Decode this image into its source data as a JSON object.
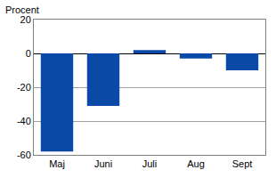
{
  "chart_data": {
    "type": "bar",
    "y_label": "Procent",
    "categories": [
      "Maj",
      "Juni",
      "Juli",
      "Aug",
      "Sept"
    ],
    "values": [
      -58,
      -31,
      2,
      -3,
      -10
    ],
    "color": "#0a4aa6",
    "ylim": [
      -60,
      20
    ],
    "yticks": [
      -60,
      -40,
      -20,
      0,
      20
    ],
    "grid": true
  }
}
